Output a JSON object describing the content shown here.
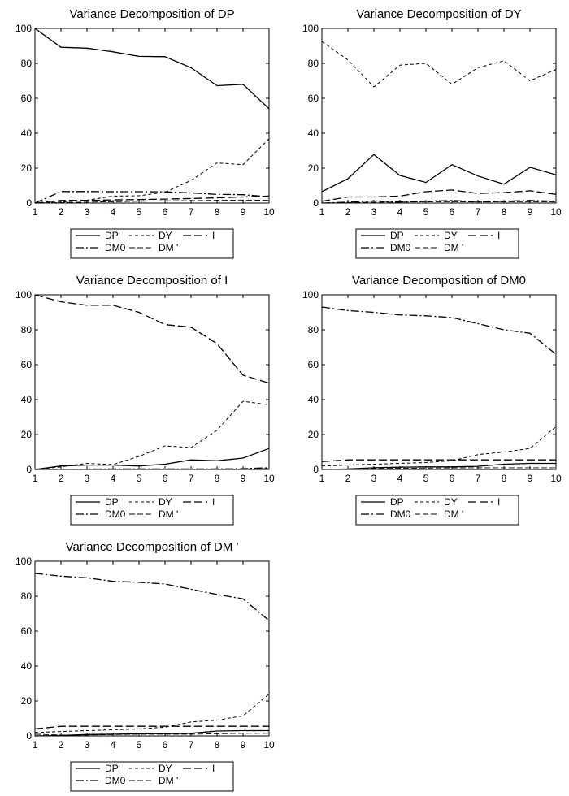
{
  "chart_data": [
    {
      "type": "line",
      "title": "Variance Decomposition of DP",
      "x": [
        1,
        2,
        3,
        4,
        5,
        6,
        7,
        8,
        9,
        10
      ],
      "ylim": [
        0,
        100
      ],
      "yticks": [
        0,
        20,
        40,
        60,
        80,
        100
      ],
      "legend_position": "below",
      "series": [
        {
          "name": "DP",
          "values": [
            100,
            89.2,
            88.7,
            86.6,
            84.0,
            83.8,
            77.5,
            67.2,
            68.0,
            54.0
          ]
        },
        {
          "name": "DY",
          "values": [
            0,
            0.6,
            1.6,
            4.0,
            4.2,
            6.2,
            13.0,
            23.0,
            22.0,
            36.8
          ]
        },
        {
          "name": "I",
          "values": [
            0,
            1.5,
            1.6,
            1.8,
            2.0,
            2.3,
            2.6,
            3.0,
            3.5,
            4.0
          ]
        },
        {
          "name": "DM0",
          "values": [
            0,
            6.6,
            6.6,
            6.5,
            6.5,
            6.4,
            5.8,
            5.0,
            4.8,
            3.6
          ]
        },
        {
          "name": "DM '",
          "values": [
            0,
            0.3,
            0.5,
            0.8,
            1.0,
            1.3,
            1.4,
            1.6,
            1.7,
            1.6
          ]
        }
      ]
    },
    {
      "type": "line",
      "title": "Variance Decomposition of DY",
      "x": [
        1,
        2,
        3,
        4,
        5,
        6,
        7,
        8,
        9,
        10
      ],
      "ylim": [
        0,
        100
      ],
      "yticks": [
        0,
        20,
        40,
        60,
        80,
        100
      ],
      "legend_position": "below",
      "series": [
        {
          "name": "DP",
          "values": [
            6.5,
            14.0,
            27.8,
            15.8,
            11.8,
            22.0,
            15.5,
            10.8,
            20.5,
            16.2
          ]
        },
        {
          "name": "DY",
          "values": [
            92.5,
            82.0,
            66.5,
            79.0,
            80.0,
            68.0,
            77.5,
            81.5,
            70.0,
            76.5
          ]
        },
        {
          "name": "I",
          "values": [
            1.0,
            3.5,
            3.5,
            4.0,
            6.5,
            7.5,
            5.5,
            6.0,
            7.0,
            5.0
          ]
        },
        {
          "name": "DM0",
          "values": [
            0,
            0.5,
            1.2,
            0.6,
            1.0,
            1.5,
            0.8,
            1.0,
            1.5,
            1.0
          ]
        },
        {
          "name": "DM '",
          "values": [
            0,
            0.2,
            0.5,
            0.5,
            0.7,
            0.8,
            0.6,
            0.7,
            0.8,
            0.6
          ]
        }
      ]
    },
    {
      "type": "line",
      "title": "Variance Decomposition of I",
      "x": [
        1,
        2,
        3,
        4,
        5,
        6,
        7,
        8,
        9,
        10
      ],
      "ylim": [
        0,
        100
      ],
      "yticks": [
        0,
        20,
        40,
        60,
        80,
        100
      ],
      "legend_position": "below",
      "series": [
        {
          "name": "DP",
          "values": [
            0,
            2.0,
            2.5,
            2.5,
            2.0,
            3.0,
            5.5,
            5.0,
            6.5,
            12.0
          ]
        },
        {
          "name": "DY",
          "values": [
            0,
            1.5,
            3.5,
            2.8,
            7.5,
            13.5,
            12.5,
            22.5,
            39.0,
            37.0
          ]
        },
        {
          "name": "I",
          "values": [
            100,
            96.0,
            94.0,
            94.0,
            90.0,
            83.0,
            81.5,
            72.0,
            54.0,
            49.5
          ]
        },
        {
          "name": "DM0",
          "values": [
            0,
            0.2,
            0.2,
            0.3,
            0.3,
            0.3,
            0.3,
            0.3,
            0.4,
            1.0
          ]
        },
        {
          "name": "DM '",
          "values": [
            0,
            0.1,
            0.1,
            0.1,
            0.2,
            0.2,
            0.2,
            0.2,
            0.3,
            0.5
          ]
        }
      ]
    },
    {
      "type": "line",
      "title": "Variance Decomposition of DM0",
      "x": [
        1,
        2,
        3,
        4,
        5,
        6,
        7,
        8,
        9,
        10
      ],
      "ylim": [
        0,
        100
      ],
      "yticks": [
        0,
        20,
        40,
        60,
        80,
        100
      ],
      "legend_position": "below",
      "series": [
        {
          "name": "DP",
          "values": [
            0,
            0.3,
            1.0,
            1.3,
            1.5,
            1.5,
            1.8,
            3.0,
            3.5,
            3.5
          ]
        },
        {
          "name": "DY",
          "values": [
            2.0,
            2.5,
            3.0,
            3.5,
            4.0,
            5.0,
            8.5,
            10.0,
            12.0,
            24.5
          ]
        },
        {
          "name": "I",
          "values": [
            4.5,
            5.5,
            5.5,
            5.5,
            5.5,
            5.5,
            5.5,
            5.5,
            5.5,
            5.5
          ]
        },
        {
          "name": "DM0",
          "values": [
            93.0,
            91.0,
            90.0,
            88.5,
            88.0,
            87.0,
            83.5,
            80.0,
            78.0,
            66.0
          ]
        },
        {
          "name": "DM '",
          "values": [
            0,
            0.3,
            0.5,
            0.7,
            0.8,
            0.9,
            1.0,
            1.0,
            1.0,
            1.0
          ]
        }
      ]
    },
    {
      "type": "line",
      "title": "Variance Decomposition of DM '",
      "x": [
        1,
        2,
        3,
        4,
        5,
        6,
        7,
        8,
        9,
        10
      ],
      "ylim": [
        0,
        100
      ],
      "yticks": [
        0,
        20,
        40,
        60,
        80,
        100
      ],
      "legend_position": "below",
      "series": [
        {
          "name": "DP",
          "values": [
            0,
            0.3,
            0.8,
            1.0,
            1.2,
            1.3,
            1.5,
            2.8,
            3.0,
            3.0
          ]
        },
        {
          "name": "DY",
          "values": [
            2.0,
            2.5,
            3.0,
            3.5,
            4.0,
            5.0,
            8.0,
            9.0,
            11.5,
            24.0
          ]
        },
        {
          "name": "I",
          "values": [
            4.0,
            5.5,
            5.5,
            5.5,
            5.5,
            5.5,
            5.5,
            5.5,
            5.5,
            5.5
          ]
        },
        {
          "name": "DM0",
          "values": [
            93.0,
            91.5,
            90.5,
            88.5,
            88.0,
            87.0,
            84.0,
            81.0,
            78.5,
            66.0
          ]
        },
        {
          "name": "DM '",
          "values": [
            1.0,
            0.5,
            0.5,
            0.8,
            1.0,
            1.0,
            1.0,
            1.2,
            1.5,
            1.5
          ]
        }
      ]
    }
  ]
}
